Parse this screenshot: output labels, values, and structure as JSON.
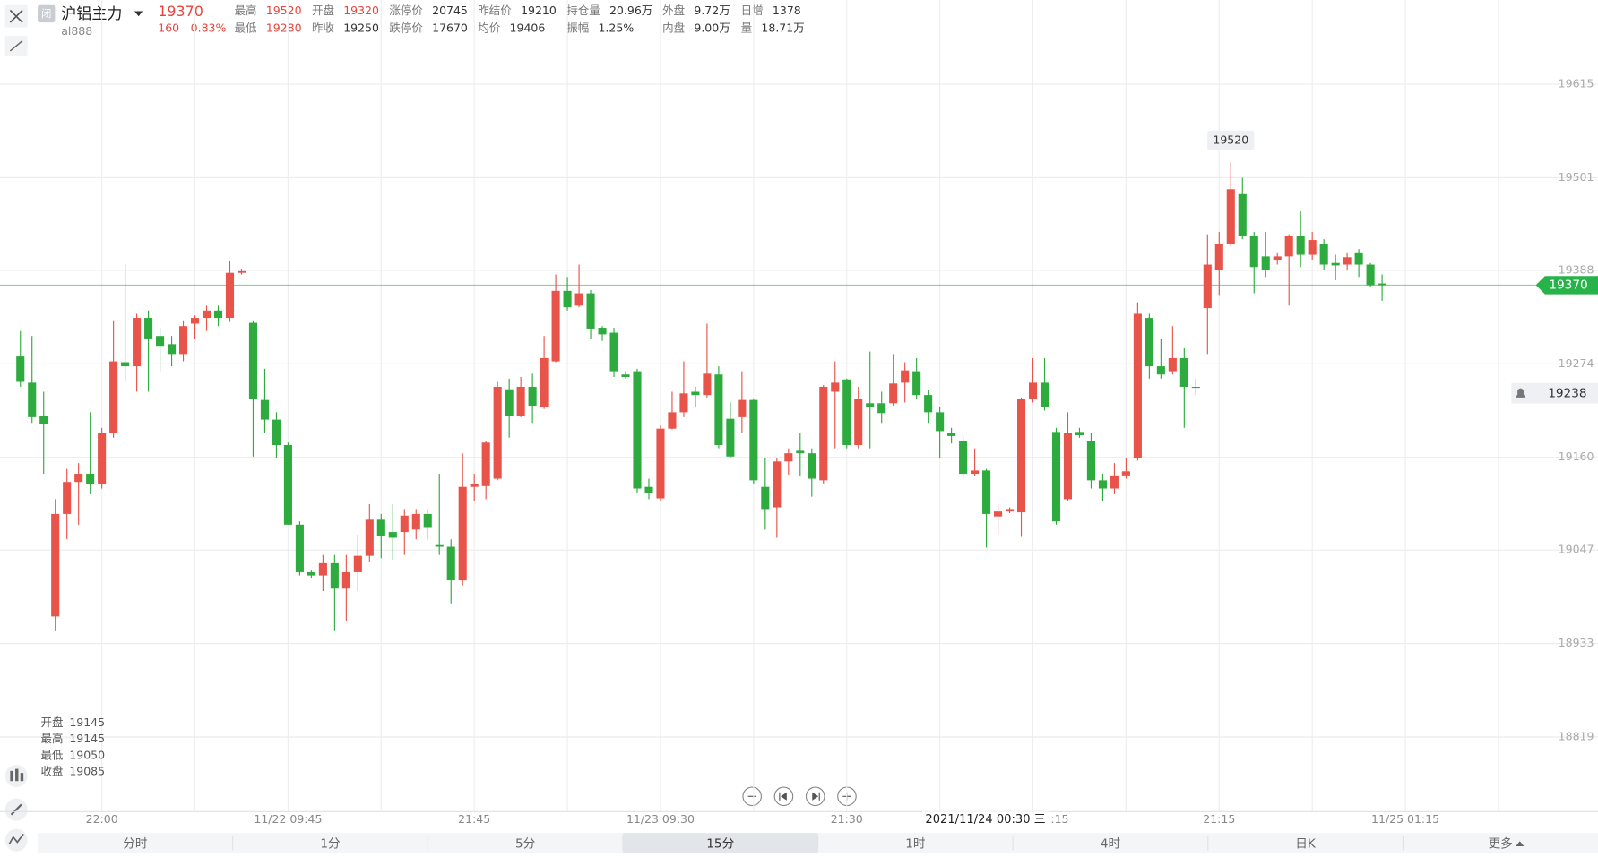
{
  "header": {
    "badge": "闭",
    "title": "沪铝主力",
    "code": "al888",
    "price": 19370,
    "change": 160,
    "change_pct": "0.83%",
    "color": "#e8453c"
  },
  "quote": [
    [
      {
        "label": "最高",
        "value": 19520,
        "color": "#e8453c"
      },
      {
        "label": "开盘",
        "value": 19320,
        "color": "#e8453c"
      },
      {
        "label": "涨停价",
        "value": 20745,
        "color": "#333333"
      },
      {
        "label": "昨结价",
        "value": 19210,
        "color": "#333333"
      },
      {
        "label": "持仓量",
        "value": "20.96万",
        "color": "#333333"
      },
      {
        "label": "外盘",
        "value": "9.72万",
        "color": "#333333"
      },
      {
        "label": "日增",
        "value": 1378,
        "color": "#333333"
      }
    ],
    [
      {
        "label": "最低",
        "value": 19280,
        "color": "#e8453c"
      },
      {
        "label": "昨收",
        "value": 19250,
        "color": "#333333"
      },
      {
        "label": "跌停价",
        "value": 17670,
        "color": "#333333"
      },
      {
        "label": "均价",
        "value": 19406,
        "color": "#333333"
      },
      {
        "label": "振幅",
        "value": "1.25%",
        "color": "#333333"
      },
      {
        "label": "内盘",
        "value": "9.00万",
        "color": "#333333"
      },
      {
        "label": "量",
        "value": "18.71万",
        "color": "#333333"
      }
    ]
  ],
  "ohlc_readout": [
    {
      "label": "开盘",
      "value": 19145
    },
    {
      "label": "最高",
      "value": 19145
    },
    {
      "label": "最低",
      "value": 19050
    },
    {
      "label": "收盘",
      "value": 19085
    }
  ],
  "tabs": [
    "分时",
    "1分",
    "5分",
    "15分",
    "1时",
    "4时",
    "日K",
    "更多"
  ],
  "selected_tab": 3,
  "chart_data": {
    "type": "candlestick",
    "up_color": "#e8534a",
    "down_color": "#2dab3e",
    "categories": [
      null,
      null,
      null,
      null,
      null,
      null,
      null,
      "22:00",
      null,
      null,
      null,
      null,
      null,
      null,
      null,
      null,
      null,
      null,
      null,
      null,
      null,
      null,
      null,
      "11/22 09:45",
      null,
      null,
      null,
      null,
      null,
      null,
      null,
      null,
      null,
      null,
      null,
      null,
      null,
      null,
      null,
      "21:45",
      null,
      null,
      null,
      null,
      null,
      null,
      null,
      null,
      null,
      null,
      null,
      null,
      null,
      null,
      null,
      "11/23 09:30",
      null,
      null,
      null,
      null,
      null,
      null,
      null,
      null,
      null,
      null,
      null,
      null,
      null,
      null,
      null,
      "21:30",
      null,
      null,
      null,
      null,
      null,
      null,
      null,
      null,
      null,
      null,
      null,
      null,
      null,
      null,
      null,
      null,
      null,
      null,
      null,
      null,
      null,
      null,
      null,
      null,
      null,
      null,
      null,
      null,
      null,
      null,
      null,
      "21:15",
      null,
      null,
      null,
      null,
      null,
      null,
      null,
      null,
      null,
      null,
      null,
      null,
      null,
      null,
      null,
      "11/25 01:15"
    ],
    "open": [
      19283,
      19251,
      19211,
      18966,
      19091,
      19130,
      19140,
      19127,
      19190,
      19276,
      19271,
      19330,
      19308,
      19298,
      19286,
      19323,
      19330,
      19339,
      19330,
      19385,
      19324,
      19230,
      19206,
      19175,
      19078,
      19020,
      19016,
      19031,
      19000,
      19020,
      19040,
      19084,
      19069,
      19069,
      19072,
      19091,
      19053,
      19051,
      19010,
      19124,
      19125,
      19134,
      19243,
      19211,
      19246,
      19221,
      19277,
      19363,
      19345,
      19360,
      19318,
      19312,
      19261,
      19265,
      19124,
      19110,
      19195,
      19215,
      19240,
      19236,
      19261,
      19207,
      19209,
      19230,
      19124,
      19099,
      19155,
      19168,
      19165,
      19132,
      19240,
      19255,
      19175,
      19226,
      19226,
      19226,
      19251,
      19265,
      19236,
      19215,
      19190,
      19180,
      19140,
      19144,
      19088,
      19094,
      19093,
      19231,
      19251,
      19191,
      19109,
      19191,
      19180,
      19132,
      19122,
      19138,
      19159,
      19330,
      19271,
      19265,
      19281,
      19246,
      19342,
      19389,
      19420,
      19481,
      19430,
      19405,
      19401,
      19405,
      19430,
      19407,
      19420,
      19397,
      19395,
      19410,
      19395,
      19372,
      null,
      null
    ],
    "high": [
      19314,
      19308,
      19240,
      19109,
      19146,
      19153,
      19215,
      19196,
      19327,
      19395,
      19335,
      19339,
      19318,
      19308,
      19327,
      19333,
      19345,
      19345,
      19400,
      19390,
      19327,
      19268,
      19215,
      19178,
      19082,
      19022,
      19041,
      19041,
      19041,
      19066,
      19103,
      19091,
      19103,
      19097,
      19097,
      19097,
      19140,
      19060,
      19165,
      19140,
      19180,
      19252,
      19256,
      19258,
      19262,
      19308,
      19383,
      19380,
      19395,
      19364,
      19320,
      19318,
      19265,
      19268,
      19134,
      19199,
      19240,
      19277,
      19246,
      19323,
      19271,
      19227,
      19265,
      19231,
      19159,
      19159,
      19171,
      19190,
      19171,
      19248,
      19277,
      19256,
      19246,
      19289,
      19240,
      19286,
      19276,
      19281,
      19242,
      19221,
      19196,
      19184,
      19171,
      19146,
      19103,
      19099,
      19233,
      19281,
      19281,
      19196,
      19215,
      19196,
      19190,
      19140,
      19153,
      19159,
      19349,
      19335,
      19305,
      19320,
      19293,
      19256,
      19432,
      19435,
      19520,
      19501,
      19435,
      19435,
      19410,
      19432,
      19460,
      19435,
      19426,
      19407,
      19410,
      19414,
      19397,
      19383,
      null,
      null
    ],
    "low": [
      19246,
      19202,
      19140,
      18948,
      19060,
      19078,
      19115,
      19122,
      19184,
      19252,
      19240,
      19240,
      19265,
      19271,
      19277,
      19305,
      19314,
      19320,
      19325,
      19383,
      19161,
      19190,
      19159,
      19078,
      19016,
      19013,
      18997,
      18948,
      18960,
      18997,
      19032,
      19037,
      19035,
      19041,
      19060,
      19060,
      19041,
      18982,
      19004,
      19107,
      19109,
      19132,
      19184,
      19209,
      19202,
      19219,
      19276,
      19339,
      19343,
      19305,
      19302,
      19258,
      19256,
      19117,
      19109,
      19107,
      19194,
      19209,
      19221,
      19233,
      19171,
      19159,
      19190,
      19127,
      19072,
      19062,
      19139,
      19137,
      19112,
      19128,
      19171,
      19171,
      19171,
      19171,
      19202,
      19223,
      19227,
      19231,
      19202,
      19159,
      19177,
      19134,
      19137,
      19050,
      19066,
      19092,
      19063,
      19227,
      19217,
      19078,
      19107,
      19184,
      19122,
      19107,
      19115,
      19134,
      19156,
      19256,
      19256,
      19261,
      19196,
      19236,
      19286,
      19358,
      19417,
      19426,
      19360,
      19380,
      19395,
      19345,
      19392,
      19401,
      19389,
      19376,
      19389,
      19380,
      19368,
      19351,
      null,
      null
    ],
    "close": [
      19252,
      19209,
      19201,
      19091,
      19130,
      19140,
      19128,
      19190,
      19277,
      19271,
      19330,
      19305,
      19296,
      19286,
      19320,
      19330,
      19339,
      19330,
      19385,
      19387,
      19231,
      19206,
      19175,
      19078,
      19020,
      19016,
      19031,
      19000,
      19020,
      19040,
      19084,
      19064,
      19062,
      19089,
      19091,
      19074,
      19051,
      19010,
      19124,
      19128,
      19178,
      19246,
      19211,
      19246,
      19223,
      19281,
      19363,
      19343,
      19360,
      19317,
      19310,
      19265,
      19258,
      19122,
      19117,
      19195,
      19215,
      19238,
      19236,
      19262,
      19175,
      19161,
      19230,
      19132,
      19097,
      19155,
      19165,
      19165,
      19134,
      19246,
      19251,
      19175,
      19231,
      19221,
      19214,
      19250,
      19266,
      19236,
      19215,
      19192,
      19186,
      19140,
      19144,
      19091,
      19094,
      19097,
      19231,
      19251,
      19221,
      19082,
      19190,
      19187,
      19132,
      19122,
      19138,
      19143,
      19335,
      19271,
      19261,
      19281,
      19246,
      19245,
      19395,
      19420,
      19487,
      19430,
      19392,
      19389,
      19405,
      19430,
      19407,
      19425,
      19395,
      19394,
      19404,
      19395,
      19370,
      19370,
      null,
      null
    ],
    "ylim": [
      18728,
      19668
    ],
    "yticks": [
      18819,
      18933,
      19047,
      19160,
      19274,
      19388,
      19501,
      19615
    ],
    "grid": true,
    "last_price": 19370,
    "last_price_color": "#27b24a",
    "alert_price": 19238,
    "high_label": 19520,
    "crosshair_label": "2021/11/24 00:30 三",
    "partial_label": ":15"
  }
}
